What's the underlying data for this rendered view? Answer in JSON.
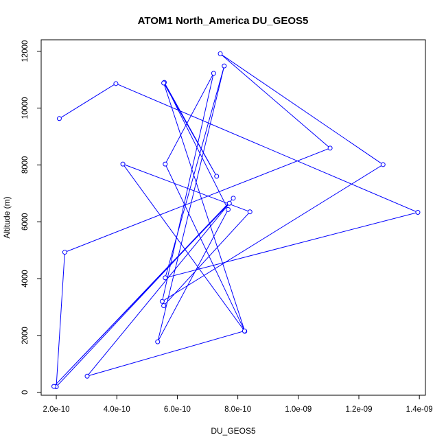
{
  "chart_data": {
    "type": "line",
    "title": "ATOM1 North_America DU_GEOS5",
    "xlabel": "DU_GEOS5",
    "ylabel": "Altitude (m)",
    "xlim": [
      1.5e-10,
      1.42e-09
    ],
    "ylim": [
      -100,
      12400
    ],
    "x_ticks": [
      2e-10,
      4e-10,
      6e-10,
      8e-10,
      1e-09,
      1.2e-09,
      1.4e-09
    ],
    "x_tick_labels": [
      "2.0e-10",
      "4.0e-10",
      "6.0e-10",
      "8.0e-10",
      "1.0e-09",
      "1.2e-09",
      "1.4e-09"
    ],
    "y_ticks": [
      0,
      2000,
      4000,
      6000,
      8000,
      10000,
      12000
    ],
    "y_tick_labels": [
      "0",
      "2000",
      "4000",
      "6000",
      "8000",
      "10000",
      "12000"
    ],
    "grid": false,
    "color": "#0000ff",
    "series": [
      {
        "points": [
          {
            "x": 2.1e-10,
            "y": 9630
          },
          {
            "x": 3.97e-10,
            "y": 10860
          },
          {
            "x": 1.395e-09,
            "y": 6330
          },
          {
            "x": 5.6e-10,
            "y": 4030
          },
          {
            "x": 7.55e-10,
            "y": 11480
          },
          {
            "x": 5.35e-10,
            "y": 1780
          },
          {
            "x": 7.68e-10,
            "y": 6430
          },
          {
            "x": 5.57e-10,
            "y": 10900
          },
          {
            "x": 7.3e-10,
            "y": 7600
          },
          {
            "x": 5.55e-10,
            "y": 10880
          },
          {
            "x": 8.23e-10,
            "y": 2150
          },
          {
            "x": 5.6e-10,
            "y": 8030
          },
          {
            "x": 7.2e-10,
            "y": 11220
          },
          {
            "x": 5.5e-10,
            "y": 3200
          },
          {
            "x": 1.28e-09,
            "y": 8010
          },
          {
            "x": 7.42e-10,
            "y": 11910
          },
          {
            "x": 1.105e-09,
            "y": 8590
          },
          {
            "x": 2.28e-10,
            "y": 4930
          },
          {
            "x": 2e-10,
            "y": 200
          },
          {
            "x": 7.85e-10,
            "y": 6830
          },
          {
            "x": 1.92e-10,
            "y": 210
          },
          {
            "x": 7.72e-10,
            "y": 6650
          },
          {
            "x": 3.02e-10,
            "y": 570
          },
          {
            "x": 8.22e-10,
            "y": 2160
          },
          {
            "x": 4.2e-10,
            "y": 8030
          },
          {
            "x": 8.4e-10,
            "y": 6350
          },
          {
            "x": 5.55e-10,
            "y": 3050
          }
        ]
      }
    ]
  }
}
